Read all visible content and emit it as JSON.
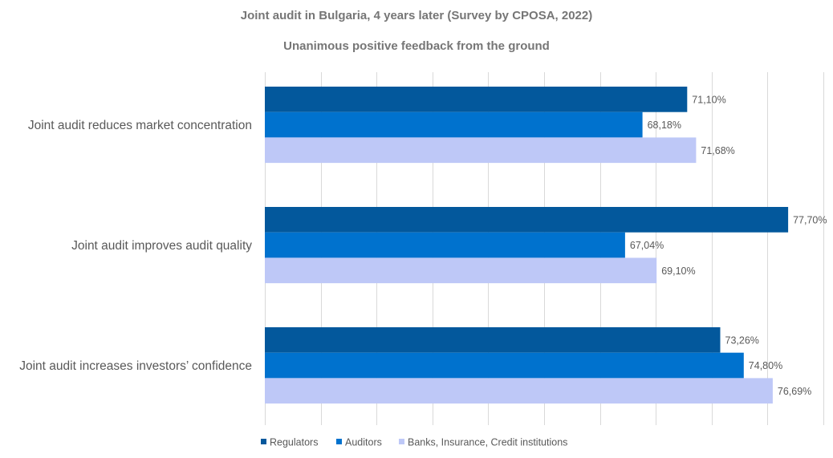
{
  "chart_data": {
    "type": "bar",
    "orientation": "horizontal",
    "title": "Joint audit in Bulgaria, 4 years later (Survey by CPOSA, 2022)",
    "subtitle": "Unanimous positive feedback from the ground",
    "categories": [
      "Joint audit reduces market concentration",
      "Joint audit improves audit quality",
      "Joint audit increases investors’ confidence"
    ],
    "series": [
      {
        "name": "Regulators",
        "color": "#03589C",
        "values": [
          71.1,
          77.7,
          73.26
        ],
        "labels": [
          "71,10%",
          "77,70%",
          "73,26%"
        ]
      },
      {
        "name": "Auditors",
        "color": "#0072CE",
        "values": [
          68.18,
          67.04,
          74.8
        ],
        "labels": [
          "68,18%",
          "67,04%",
          "74,80%"
        ]
      },
      {
        "name": "Banks, Insurance, Credit institutions",
        "color": "#BEC8F7",
        "values": [
          71.68,
          69.1,
          76.69
        ],
        "labels": [
          "71,68%",
          "69,10%",
          "76,69%"
        ]
      }
    ],
    "xlim": [
      43.5,
      80.0
    ],
    "grid": true,
    "legend": "bottom-center"
  }
}
